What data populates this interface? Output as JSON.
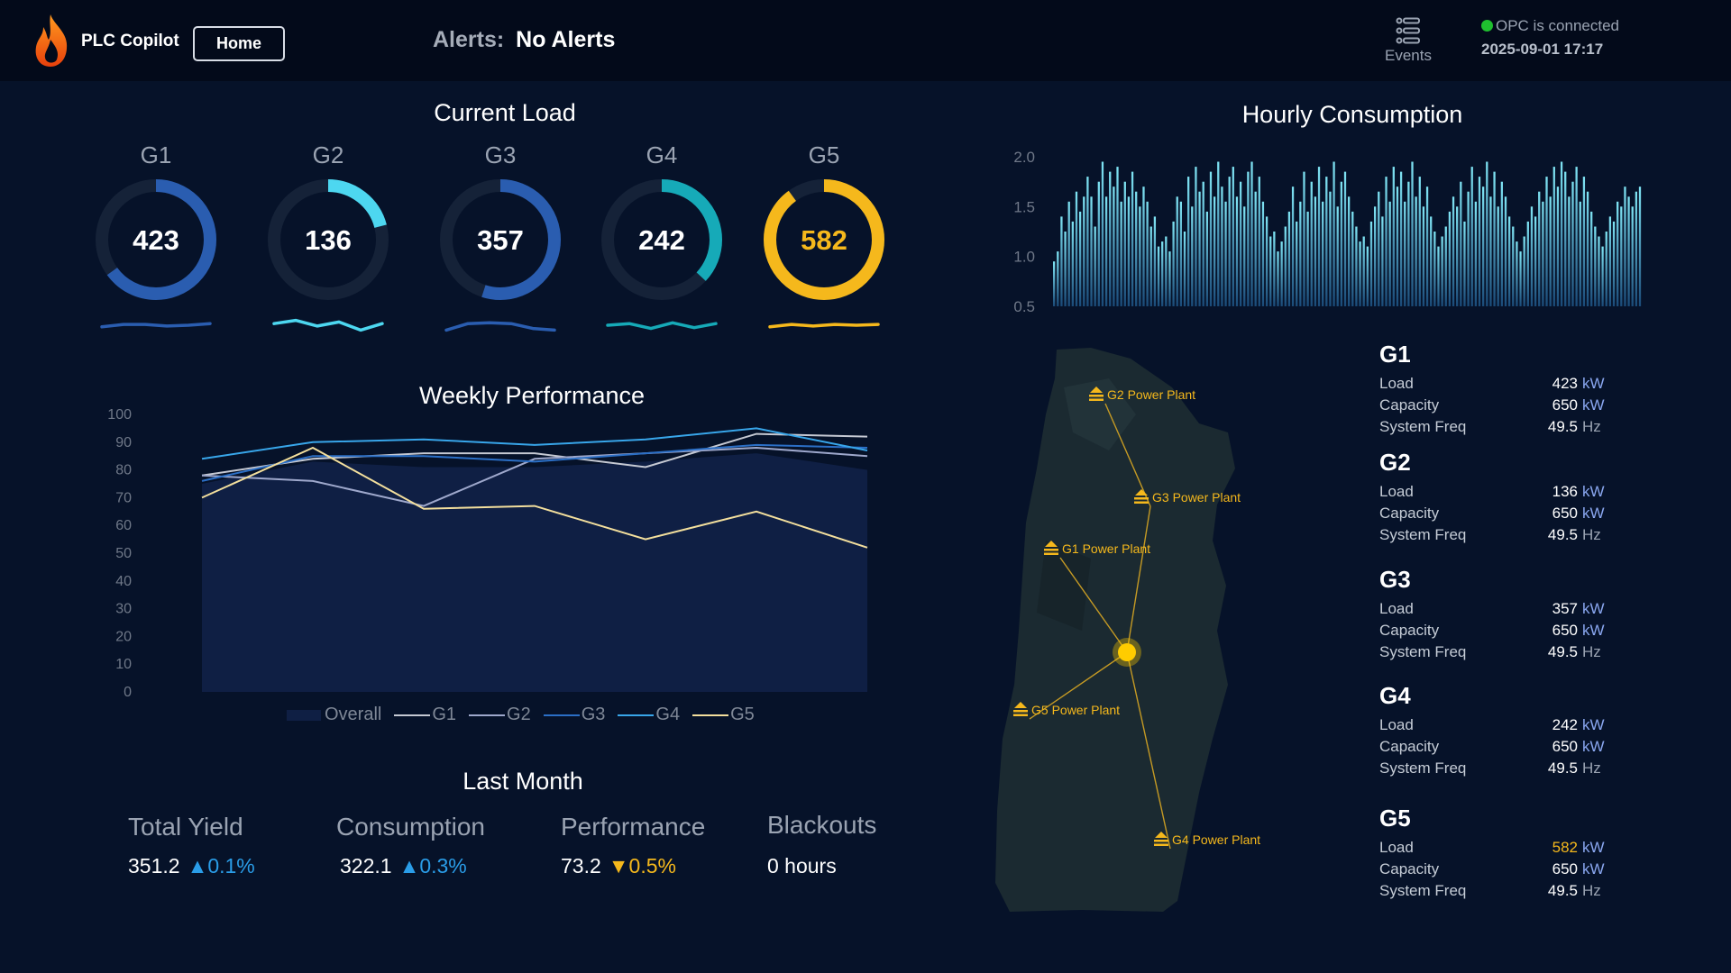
{
  "header": {
    "app_title": "PLC Copilot",
    "home_label": "Home",
    "alerts_label": "Alerts:",
    "alerts_value": "No Alerts",
    "events_label": "Events",
    "opc_status": "OPC is connected",
    "datetime": "2025-09-01 17:17",
    "icons": {
      "logo": "flame-logo-icon",
      "events": "events-list-icon",
      "status": "status-dot-icon"
    },
    "colors": {
      "opc_connected": "#1fbf2f"
    }
  },
  "current_load": {
    "title": "Current Load",
    "gauges": [
      {
        "name": "G1",
        "value": "423",
        "fraction": 0.65,
        "color": "#2a5db0",
        "text_color": "#ffffff",
        "spark": [
          0.4,
          0.55,
          0.55,
          0.45,
          0.5,
          0.6
        ]
      },
      {
        "name": "G2",
        "value": "136",
        "fraction": 0.21,
        "color": "#4dd7f0",
        "text_color": "#ffffff",
        "spark": [
          0.6,
          0.8,
          0.45,
          0.7,
          0.2,
          0.6
        ]
      },
      {
        "name": "G3",
        "value": "357",
        "fraction": 0.55,
        "color": "#2a5db0",
        "text_color": "#ffffff",
        "spark": [
          0.2,
          0.6,
          0.65,
          0.6,
          0.3,
          0.2
        ]
      },
      {
        "name": "G4",
        "value": "242",
        "fraction": 0.37,
        "color": "#16aab8",
        "text_color": "#ffffff",
        "spark": [
          0.5,
          0.6,
          0.3,
          0.65,
          0.35,
          0.6
        ]
      },
      {
        "name": "G5",
        "value": "582",
        "fraction": 0.9,
        "color": "#f5b81c",
        "text_color": "#f5b81c",
        "spark": [
          0.4,
          0.55,
          0.45,
          0.55,
          0.5,
          0.55
        ]
      }
    ]
  },
  "weekly_performance": {
    "title": "Weekly Performance",
    "chart_data": {
      "type": "line",
      "title": "Weekly Performance",
      "ylim": [
        0,
        100
      ],
      "yticks": [
        "0",
        "10",
        "20",
        "30",
        "40",
        "50",
        "60",
        "70",
        "80",
        "90",
        "100"
      ],
      "x": [
        1,
        2,
        3,
        4,
        5,
        6,
        7
      ],
      "series": [
        {
          "name": "Overall",
          "values": [
            75,
            83,
            81,
            81,
            83,
            86,
            80
          ],
          "color": "#0f1f44",
          "style": "area"
        },
        {
          "name": "G1",
          "values": [
            78,
            84,
            86,
            86,
            81,
            93,
            92
          ],
          "color": "#c5c9d3"
        },
        {
          "name": "G2",
          "values": [
            78,
            76,
            67,
            84,
            86,
            88,
            85
          ],
          "color": "#9ea8cc"
        },
        {
          "name": "G3",
          "values": [
            76,
            85,
            85,
            83,
            86,
            89,
            88
          ],
          "color": "#2b6fc6"
        },
        {
          "name": "G4",
          "values": [
            84,
            90,
            91,
            89,
            91,
            95,
            87
          ],
          "color": "#38a6ea"
        },
        {
          "name": "G5",
          "values": [
            70,
            88,
            66,
            67,
            55,
            65,
            52
          ],
          "color": "#f3df9d"
        }
      ],
      "legend": "bottom"
    }
  },
  "hourly_consumption": {
    "title": "Hourly Consumption",
    "chart_data": {
      "type": "bar",
      "title": "Hourly Consumption",
      "ylim": [
        0.5,
        2.0
      ],
      "yticks": [
        "0.5",
        "1.0",
        "1.5",
        "2.0"
      ],
      "values": [
        0.95,
        1.05,
        1.4,
        1.25,
        1.55,
        1.35,
        1.65,
        1.45,
        1.6,
        1.8,
        1.6,
        1.3,
        1.75,
        1.95,
        1.6,
        1.85,
        1.7,
        1.9,
        1.55,
        1.75,
        1.6,
        1.85,
        1.65,
        1.5,
        1.7,
        1.55,
        1.3,
        1.4,
        1.1,
        1.15,
        1.2,
        1.05,
        1.35,
        1.6,
        1.55,
        1.25,
        1.8,
        1.5,
        1.9,
        1.65,
        1.75,
        1.45,
        1.85,
        1.6,
        1.95,
        1.7,
        1.55,
        1.8,
        1.9,
        1.6,
        1.75,
        1.5,
        1.85,
        1.95,
        1.65,
        1.8,
        1.55,
        1.4,
        1.2,
        1.25,
        1.05,
        1.15,
        1.3,
        1.45,
        1.7,
        1.35,
        1.55,
        1.85,
        1.45,
        1.75,
        1.6,
        1.9,
        1.55,
        1.8,
        1.65,
        1.95,
        1.5,
        1.75,
        1.85,
        1.6,
        1.45,
        1.3,
        1.15,
        1.2,
        1.1,
        1.35,
        1.5,
        1.65,
        1.4,
        1.8,
        1.55,
        1.9,
        1.7,
        1.85,
        1.55,
        1.75,
        1.95,
        1.6,
        1.8,
        1.5,
        1.7,
        1.4,
        1.25,
        1.1,
        1.2,
        1.3,
        1.45,
        1.6,
        1.5,
        1.75,
        1.35,
        1.65,
        1.9,
        1.55,
        1.8,
        1.7,
        1.95,
        1.6,
        1.85,
        1.5,
        1.75,
        1.6,
        1.4,
        1.3,
        1.15,
        1.05,
        1.2,
        1.35,
        1.5,
        1.4,
        1.65,
        1.55,
        1.8,
        1.6,
        1.9,
        1.7,
        1.95,
        1.85,
        1.6,
        1.75,
        1.9,
        1.55,
        1.8,
        1.65,
        1.45,
        1.3,
        1.2,
        1.1,
        1.25,
        1.4,
        1.35,
        1.55,
        1.5,
        1.7,
        1.6,
        1.5,
        1.65,
        1.7
      ]
    }
  },
  "last_month": {
    "title": "Last Month",
    "stats": [
      {
        "label": "Total Yield",
        "value": "351.2",
        "delta": "▲0.1%",
        "dir": "up"
      },
      {
        "label": "Consumption",
        "value": "322.1",
        "delta": "▲0.3%",
        "dir": "up"
      },
      {
        "label": "Performance",
        "value": "73.2",
        "delta": "▼0.5%",
        "dir": "down"
      },
      {
        "label": "Blackouts",
        "value": "0 hours",
        "delta": "",
        "dir": "none"
      }
    ]
  },
  "map": {
    "plants": [
      {
        "label": "G2 Power Plant",
        "icon": "power-plant-icon"
      },
      {
        "label": "G3 Power Plant",
        "icon": "power-plant-icon"
      },
      {
        "label": "G1 Power Plant",
        "icon": "power-plant-icon"
      },
      {
        "label": "G5 Power Plant",
        "icon": "power-plant-icon"
      },
      {
        "label": "G4 Power Plant",
        "icon": "power-plant-icon"
      }
    ],
    "colors": {
      "plant": "#f5b81c",
      "hub": "#ffcc00",
      "land": "#1b2a31"
    }
  },
  "generators": [
    {
      "name": "G1",
      "rows": [
        {
          "k": "Load",
          "v": "423",
          "u": "kW"
        },
        {
          "k": "Capacity",
          "v": "650",
          "u": "kW"
        },
        {
          "k": "System Freq",
          "v": "49.5",
          "u": "Hz"
        }
      ]
    },
    {
      "name": "G2",
      "rows": [
        {
          "k": "Load",
          "v": "136",
          "u": "kW"
        },
        {
          "k": "Capacity",
          "v": "650",
          "u": "kW"
        },
        {
          "k": "System Freq",
          "v": "49.5",
          "u": "Hz"
        }
      ]
    },
    {
      "name": "G3",
      "rows": [
        {
          "k": "Load",
          "v": "357",
          "u": "kW"
        },
        {
          "k": "Capacity",
          "v": "650",
          "u": "kW"
        },
        {
          "k": "System Freq",
          "v": "49.5",
          "u": "Hz"
        }
      ]
    },
    {
      "name": "G4",
      "rows": [
        {
          "k": "Load",
          "v": "242",
          "u": "kW"
        },
        {
          "k": "Capacity",
          "v": "650",
          "u": "kW"
        },
        {
          "k": "System Freq",
          "v": "49.5",
          "u": "Hz"
        }
      ]
    },
    {
      "name": "G5",
      "rows": [
        {
          "k": "Load",
          "v": "582",
          "u": "kW"
        },
        {
          "k": "Capacity",
          "v": "650",
          "u": "kW"
        },
        {
          "k": "System Freq",
          "v": "49.5",
          "u": "Hz"
        }
      ]
    }
  ]
}
